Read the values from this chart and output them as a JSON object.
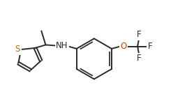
{
  "background_color": "#ffffff",
  "line_color": "#2a2a2a",
  "text_color": "#2a2a2a",
  "figsize": [
    2.78,
    1.55
  ],
  "dpi": 100,
  "lw": 1.4,
  "font_size": 8.5,
  "s_color": "#b87800",
  "o_color": "#cc4400",
  "n_color": "#2a2a2a",
  "xlim": [
    0,
    10
  ],
  "ylim": [
    0,
    5.6
  ]
}
